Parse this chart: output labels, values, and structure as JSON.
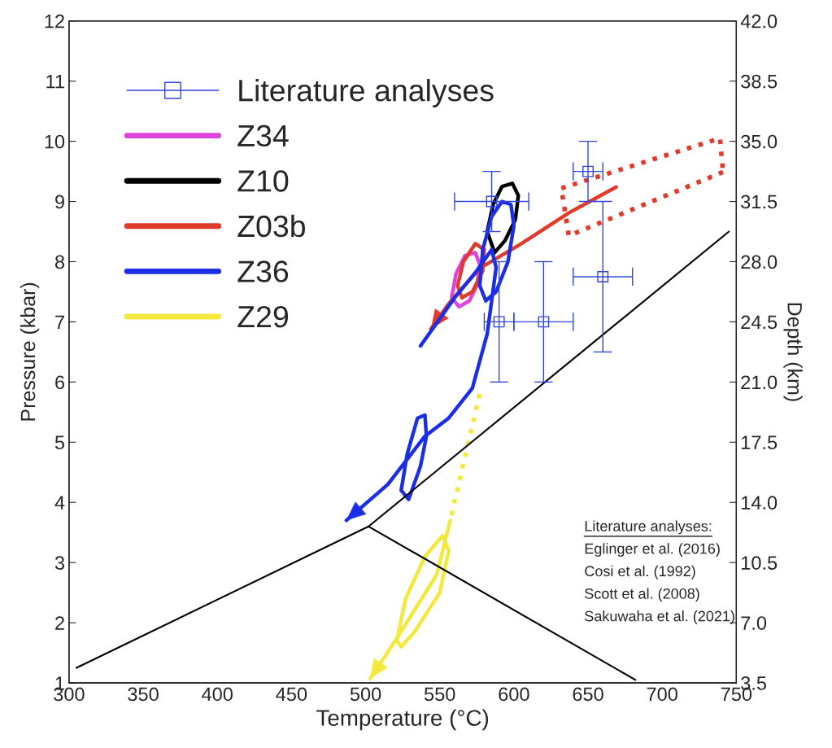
{
  "chart_data": {
    "type": "line",
    "xlabel": "Temperature (°C)",
    "ylabel": "Pressure (kbar)",
    "y2label": "Depth (km)",
    "xlim": [
      300,
      750
    ],
    "xticks": [
      300,
      350,
      400,
      450,
      500,
      550,
      600,
      650,
      700,
      750
    ],
    "ylim": [
      1,
      12
    ],
    "yticks": [
      1,
      2,
      3,
      4,
      5,
      6,
      7,
      8,
      9,
      10,
      11,
      12
    ],
    "y2lim": [
      3.5,
      42.0
    ],
    "y2ticks": [
      3.5,
      {
        "value": 7,
        "label": "7.0"
      },
      10.5,
      {
        "value": 14,
        "label": "14.0"
      },
      17.5,
      {
        "value": 21,
        "label": "21.0"
      },
      24.5,
      {
        "value": 28,
        "label": "28.0"
      },
      31.5,
      {
        "value": 35,
        "label": "35.0"
      },
      38.5,
      {
        "value": 42,
        "label": "42.0"
      }
    ],
    "grid": false,
    "legend": "top left",
    "series": [
      {
        "name": "Literature analyses",
        "type": "scatter",
        "marker": "square",
        "color": "#3344dd",
        "x": [
          585,
          650,
          590,
          620,
          660
        ],
        "values": [
          9.0,
          9.5,
          7.0,
          7.0,
          7.75
        ],
        "errors": [
          0.5,
          0.5,
          1,
          1,
          1.25
        ],
        "xerrors": [
          25,
          10,
          10,
          20,
          20
        ]
      },
      {
        "name": "Z34",
        "color": "#dd44dd",
        "x": [
          558,
          561,
          567,
          574,
          577,
          null,
          577,
          575,
          570,
          563,
          558
        ],
        "values": [
          7.4,
          7.8,
          8.1,
          8.15,
          7.95,
          null,
          7.95,
          7.6,
          7.35,
          7.25,
          7.4
        ]
      },
      {
        "name": "Z10",
        "color": "#000000",
        "x": [
          582,
          586,
          592,
          599,
          603,
          null,
          603,
          601,
          594,
          587,
          582
        ],
        "values": [
          8.5,
          8.95,
          9.25,
          9.3,
          9.1,
          null,
          9.1,
          8.7,
          8.35,
          8.15,
          8.5
        ]
      },
      {
        "name": "Z03b",
        "color": "#e03a2a",
        "x": [
          562,
          566,
          574,
          580,
          null,
          580,
          579,
          572,
          565,
          562,
          null,
          669,
          637,
          605,
          577,
          556,
          544
        ],
        "values": [
          7.6,
          8.0,
          8.3,
          8.2,
          null,
          8.2,
          7.85,
          7.5,
          7.4,
          7.6,
          null,
          9.24,
          8.81,
          8.3,
          7.89,
          7.3,
          6.88
        ]
      },
      {
        "name": "Z36",
        "color": "#1a2ee6",
        "x": [
          577,
          579,
          585,
          592,
          598,
          600,
          null,
          600,
          596,
          588,
          581,
          577,
          null,
          524,
          528,
          535,
          540,
          541,
          null,
          541,
          537,
          529,
          524,
          null,
          537,
          560,
          575,
          585,
          588,
          null,
          588,
          582,
          572,
          556,
          540,
          515,
          487
        ],
        "values": [
          7.6,
          8.2,
          8.75,
          9.0,
          8.95,
          8.6,
          null,
          8.6,
          8.0,
          7.5,
          7.35,
          7.6,
          null,
          4.2,
          4.8,
          5.4,
          5.45,
          5.1,
          null,
          5.1,
          4.6,
          4.05,
          4.2,
          null,
          6.6,
          7.4,
          7.85,
          8.2,
          7.9,
          null,
          7.9,
          6.8,
          5.9,
          5.4,
          5.1,
          4.3,
          3.7
        ]
      },
      {
        "name": "Z29",
        "color": "#f5e83c",
        "x": [
          521,
          527,
          540,
          552,
          556,
          null,
          556,
          550,
          533,
          524,
          521,
          null,
          557,
          548,
          520,
          503
        ],
        "values": [
          1.7,
          2.4,
          3.1,
          3.45,
          3.2,
          null,
          3.2,
          2.5,
          1.85,
          1.6,
          1.7,
          null,
          3.7,
          2.8,
          1.7,
          1.07
        ]
      },
      {
        "color": "#f5e83c",
        "line_style": "dotted",
        "x": [
          577,
          557
        ],
        "values": [
          5.8,
          3.7
        ]
      },
      {
        "color": "#e03a2a",
        "line_style": "dotted",
        "x": [
          632,
          739,
          741,
          null,
          741,
          637,
          632
        ],
        "values": [
          9.22,
          10.05,
          9.49,
          null,
          9.49,
          8.43,
          9.22
        ]
      },
      {
        "color": "#000000",
        "x": [
          305,
          502,
          745
        ],
        "values": [
          1.25,
          3.6,
          8.5
        ]
      },
      {
        "color": "#000000",
        "x": [
          502,
          682
        ],
        "values": [
          3.6,
          1.05
        ]
      }
    ],
    "annotations": [
      "Literature analyses:",
      "Eglinger et al. (2016)",
      "Cosi et al. (1992)",
      "Scott et al. (2008)",
      "Sakuwaha et al. (2021)"
    ]
  }
}
